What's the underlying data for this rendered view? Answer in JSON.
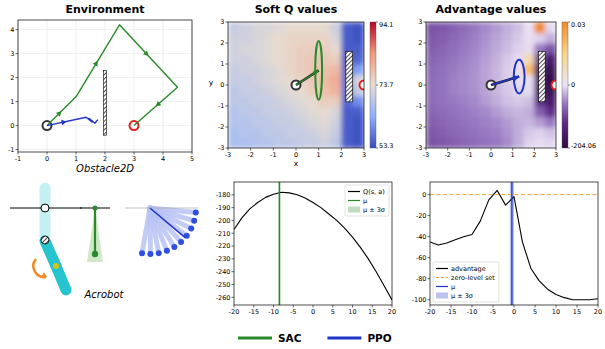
{
  "chart_data": [
    {
      "type": "line",
      "title": "Environment",
      "caption": "Obstacle2D",
      "xlim": [
        -1,
        5
      ],
      "ylim": [
        -1.1,
        4.4
      ],
      "xticks": [
        -1,
        0,
        1,
        2,
        3,
        4,
        5
      ],
      "yticks": [
        -1,
        0,
        1,
        2,
        3,
        4
      ],
      "grid": true,
      "series": [
        {
          "color": "#2a8a2a",
          "x": [
            0,
            1,
            2.5,
            4.5,
            3
          ],
          "y": [
            0,
            1.2,
            4.2,
            1.6,
            0
          ]
        },
        {
          "color": "#1f35c8",
          "x": [
            0,
            1.35,
            1.55,
            1.45,
            1.65,
            1.75
          ],
          "y": [
            0,
            0.35,
            0.15,
            0.3,
            0.1,
            0.25
          ]
        }
      ],
      "obstacle": {
        "x": [
          1.95,
          2.05
        ],
        "y": [
          -0.4,
          2.3
        ]
      },
      "start": {
        "x": 0,
        "y": 0
      },
      "goal": {
        "x": 3,
        "y": 0
      }
    },
    {
      "type": "heatmap",
      "title": "Soft Q values",
      "x_label": "x",
      "y_label": "y",
      "xlim": [
        -3,
        3
      ],
      "ylim": [
        -3,
        3
      ],
      "xticks": [
        -3,
        -2,
        -1,
        0,
        1,
        2,
        3
      ],
      "yticks": [
        -3,
        -2,
        -1,
        0,
        1,
        2,
        3
      ],
      "cells": [
        [
          67,
          67,
          68,
          68,
          69,
          69,
          70,
          70,
          71,
          69,
          55,
          54
        ],
        [
          67,
          68,
          68,
          69,
          69,
          70,
          70,
          71,
          72,
          70,
          55,
          54
        ],
        [
          68,
          68,
          69,
          69,
          70,
          70,
          71,
          72,
          73,
          71,
          55,
          54
        ],
        [
          68,
          69,
          69,
          70,
          70,
          71,
          72,
          73,
          74,
          72,
          55,
          55
        ],
        [
          69,
          69,
          70,
          70,
          71,
          72,
          73,
          74,
          76,
          76,
          56,
          60
        ],
        [
          69,
          70,
          70,
          71,
          72,
          73,
          74,
          76,
          78,
          80,
          57,
          70
        ],
        [
          70,
          70,
          71,
          72,
          73,
          74,
          75,
          77,
          79,
          81,
          57,
          72
        ],
        [
          70,
          71,
          71,
          72,
          73,
          75,
          76,
          77,
          78,
          79,
          56,
          62
        ],
        [
          71,
          71,
          72,
          73,
          74,
          75,
          76,
          77,
          77,
          76,
          55,
          56
        ],
        [
          71,
          72,
          72,
          73,
          74,
          75,
          76,
          76,
          76,
          74,
          55,
          55
        ],
        [
          71,
          71,
          72,
          73,
          74,
          75,
          75,
          75,
          75,
          72,
          55,
          54
        ],
        [
          70,
          71,
          72,
          72,
          73,
          74,
          74,
          74,
          74,
          71,
          55,
          54
        ]
      ],
      "colorbar": {
        "range": [
          53.3,
          94.1
        ],
        "ticks": [
          53.3,
          73.7,
          94.1
        ],
        "color": "coolwarm"
      },
      "obstacle": {
        "x": [
          2.2,
          2.5
        ],
        "y": [
          -0.8,
          1.6
        ]
      },
      "start": {
        "x": 0,
        "y": 0
      },
      "goal": {
        "x": 3,
        "y": 0
      },
      "policy": {
        "color": "#2a8a2a",
        "mean": {
          "x": 1,
          "y": 0.7
        },
        "three_sigma": {
          "x": 0.15,
          "y": 1.4
        }
      }
    },
    {
      "type": "heatmap",
      "title": "Advantage values",
      "xlim": [
        -3,
        3
      ],
      "ylim": [
        -3,
        3
      ],
      "xticks": [
        -3,
        -2,
        -1,
        0,
        1,
        2,
        3
      ],
      "yticks": [
        -3,
        -2,
        -1,
        0,
        1,
        2,
        3
      ],
      "cells": [
        [
          -90,
          -85,
          -80,
          -75,
          -70,
          -65,
          -60,
          -50,
          -30,
          -10,
          -5,
          -8
        ],
        [
          -85,
          -80,
          -75,
          -70,
          -65,
          -60,
          -55,
          -45,
          -30,
          -15,
          -10,
          -20
        ],
        [
          -80,
          -75,
          -70,
          -65,
          -60,
          -55,
          -50,
          -40,
          -30,
          -25,
          -40,
          -60
        ],
        [
          -75,
          -70,
          -65,
          -60,
          -55,
          -50,
          -40,
          -30,
          -25,
          -30,
          -80,
          -120
        ],
        [
          -70,
          -65,
          -60,
          -55,
          -50,
          -40,
          -30,
          -20,
          -15,
          -20,
          -120,
          -160
        ],
        [
          -70,
          -65,
          -55,
          -50,
          -45,
          -35,
          -25,
          -15,
          -8,
          -5,
          -150,
          -180
        ],
        [
          -70,
          -65,
          -55,
          -50,
          -45,
          -35,
          -25,
          -12,
          -4,
          -2,
          -150,
          -190
        ],
        [
          -72,
          -66,
          -58,
          -52,
          -45,
          -35,
          -25,
          -12,
          -3,
          0.02,
          -140,
          -180
        ],
        [
          -75,
          -70,
          -62,
          -55,
          -48,
          -38,
          -28,
          -15,
          -5,
          0.01,
          -100,
          -150
        ],
        [
          -80,
          -75,
          -68,
          -60,
          -52,
          -42,
          -32,
          -22,
          -10,
          -5,
          -60,
          -90
        ],
        [
          -85,
          -80,
          -72,
          -65,
          -55,
          -45,
          -35,
          -25,
          -15,
          -3,
          -10,
          -30
        ],
        [
          -90,
          -85,
          -78,
          -70,
          -60,
          -50,
          -40,
          -30,
          -20,
          -2,
          0.03,
          -5
        ]
      ],
      "colorbar": {
        "range": [
          -204.06,
          0.03
        ],
        "center": 0,
        "ticks": [
          -204.06,
          0,
          0.03
        ],
        "color": "purple-orange"
      },
      "obstacle": {
        "x": [
          2.2,
          2.5
        ],
        "y": [
          -0.8,
          1.6
        ]
      },
      "start": {
        "x": 0,
        "y": 0
      },
      "goal": {
        "x": 3,
        "y": 0
      },
      "policy": {
        "color": "#1f35c8",
        "mean": {
          "x": 1.3,
          "y": 0.4
        },
        "three_sigma": {
          "x": 0.25,
          "y": 0.8
        }
      }
    },
    {
      "type": "line",
      "xlim": [
        -20,
        20
      ],
      "ylim": [
        -266,
        -170
      ],
      "xticks": [
        -20,
        -15,
        -10,
        -5,
        0,
        5,
        10,
        15,
        20
      ],
      "yticks": [
        -260,
        -250,
        -240,
        -230,
        -220,
        -210,
        -200,
        -190,
        -180
      ],
      "x": [
        -20,
        -18,
        -16,
        -14,
        -12,
        -10,
        -8,
        -6,
        -4,
        -2,
        0,
        2,
        4,
        6,
        8,
        10,
        12,
        14,
        16,
        18,
        20
      ],
      "series": [
        {
          "name": "Q(s, a)",
          "color": "#000000",
          "values": [
            -207,
            -198,
            -191,
            -186,
            -182,
            -179.5,
            -178,
            -178.5,
            -180,
            -182.5,
            -186,
            -190,
            -195,
            -200,
            -206,
            -213,
            -221,
            -230,
            -240,
            -251,
            -262
          ]
        }
      ],
      "mean": {
        "name": "μ",
        "value": -8.5,
        "color": "#2a8a2a"
      },
      "band": {
        "name": "μ ± 3σ",
        "low": -8.8,
        "high": -8.2,
        "color": "#2a8a2a"
      },
      "legend": "upper right"
    },
    {
      "type": "line",
      "xlim": [
        -20,
        20
      ],
      "ylim": [
        -105,
        12
      ],
      "xticks": [
        -20,
        -15,
        -10,
        -5,
        0,
        5,
        10,
        15,
        20
      ],
      "yticks": [
        -100,
        -80,
        -60,
        -40,
        -20,
        0
      ],
      "x": [
        -20,
        -18,
        -16,
        -14,
        -12,
        -10,
        -8,
        -6,
        -4,
        -2,
        0,
        2,
        4,
        6,
        8,
        10,
        12,
        14,
        16,
        18,
        20
      ],
      "series": [
        {
          "name": "advantage",
          "color": "#000000",
          "values": [
            -45,
            -48,
            -46,
            -43,
            -40,
            -38,
            -25,
            -5,
            4,
            -10,
            -2,
            -45,
            -70,
            -82,
            -90,
            -95,
            -98,
            -100,
            -100,
            -100,
            -99
          ]
        }
      ],
      "reference": {
        "name": "zero-level set",
        "value": 0,
        "color": "#f5a623",
        "line_style": "dashed"
      },
      "mean": {
        "name": "μ",
        "value": -0.5,
        "color": "#1f35c8"
      },
      "band": {
        "name": "μ ± 3σ",
        "low": -1.0,
        "high": 0.0,
        "color": "#1f35c8"
      },
      "legend": "lower left"
    }
  ],
  "figure_legend": {
    "entries": [
      {
        "name": "SAC",
        "color": "#2a8a2a"
      },
      {
        "name": "PPO",
        "color": "#1f35c8"
      }
    ]
  },
  "illustration": {
    "caption": "Acrobot"
  }
}
